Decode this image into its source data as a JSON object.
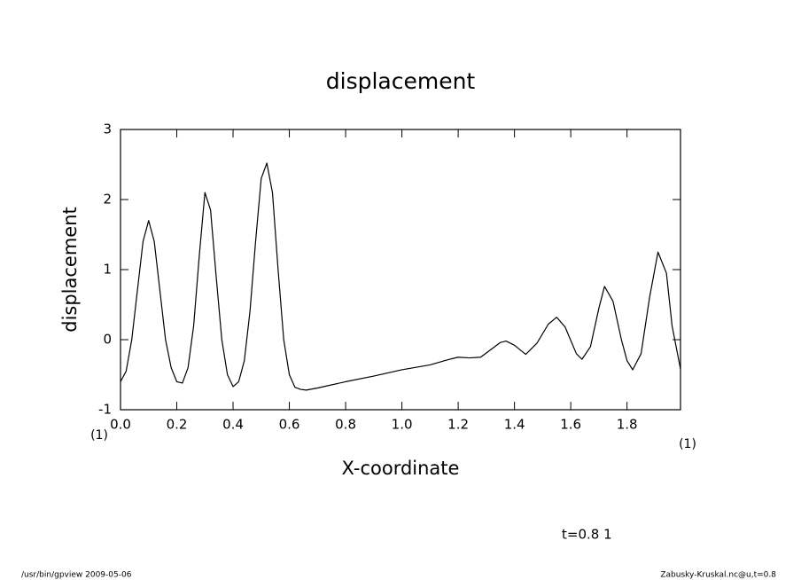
{
  "chart_data": {
    "type": "line",
    "title": "displacement",
    "x_label": "X-coordinate",
    "y_label": "displacement",
    "x": [
      0,
      0.02,
      0.04,
      0.06,
      0.08,
      0.1,
      0.12,
      0.14,
      0.16,
      0.18,
      0.2,
      0.22,
      0.24,
      0.26,
      0.28,
      0.3,
      0.32,
      0.34,
      0.36,
      0.38,
      0.4,
      0.42,
      0.44,
      0.46,
      0.48,
      0.5,
      0.52,
      0.54,
      0.56,
      0.58,
      0.6,
      0.62,
      0.64,
      0.66,
      0.7,
      0.8,
      0.9,
      1.0,
      1.1,
      1.16,
      1.2,
      1.24,
      1.28,
      1.32,
      1.35,
      1.37,
      1.4,
      1.44,
      1.48,
      1.52,
      1.55,
      1.58,
      1.62,
      1.64,
      1.67,
      1.7,
      1.72,
      1.75,
      1.78,
      1.8,
      1.82,
      1.85,
      1.88,
      1.91,
      1.94,
      1.96,
      1.99
    ],
    "series": [
      {
        "name": "displacement",
        "color": "#000000",
        "values": [
          -0.6,
          -0.45,
          0.0,
          0.7,
          1.4,
          1.7,
          1.4,
          0.7,
          0.0,
          -0.4,
          -0.6,
          -0.62,
          -0.4,
          0.2,
          1.2,
          2.1,
          1.85,
          0.9,
          0.0,
          -0.5,
          -0.67,
          -0.6,
          -0.3,
          0.4,
          1.4,
          2.3,
          2.52,
          2.1,
          1.0,
          0.0,
          -0.5,
          -0.68,
          -0.71,
          -0.72,
          -0.69,
          -0.6,
          -0.52,
          -0.43,
          -0.36,
          -0.29,
          -0.25,
          -0.26,
          -0.25,
          -0.13,
          -0.04,
          -0.02,
          -0.08,
          -0.21,
          -0.05,
          0.22,
          0.32,
          0.18,
          -0.2,
          -0.28,
          -0.1,
          0.45,
          0.76,
          0.55,
          0.0,
          -0.3,
          -0.43,
          -0.2,
          0.6,
          1.25,
          0.95,
          0.2,
          -0.42
        ]
      }
    ],
    "xlim": [
      0,
      1.99
    ],
    "ylim": [
      -1,
      3
    ],
    "xticks": [
      {
        "value": 0,
        "label": "0.0"
      },
      {
        "value": 0.2,
        "label": "0.2"
      },
      {
        "value": 0.4,
        "label": "0.4"
      },
      {
        "value": 0.6,
        "label": "0.6"
      },
      {
        "value": 0.8,
        "label": "0.8"
      },
      {
        "value": 1.0,
        "label": "1.0"
      },
      {
        "value": 1.2,
        "label": "1.2"
      },
      {
        "value": 1.4,
        "label": "1.4"
      },
      {
        "value": 1.6,
        "label": "1.6"
      },
      {
        "value": 1.8,
        "label": "1.8"
      }
    ],
    "yticks": [
      -1,
      0,
      1,
      2,
      3
    ],
    "annotations": [
      "(1)",
      "(1)",
      "t=0.8  1",
      "/usr/bin/gpview   2009-05-06",
      "Zabusky-Kruskal.nc@u,t=0.8"
    ]
  }
}
